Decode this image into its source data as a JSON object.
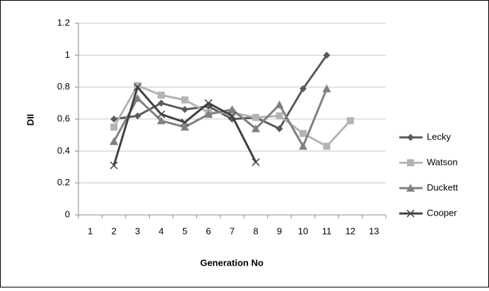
{
  "chart_data": {
    "type": "line",
    "x_label": "Generation No",
    "y_label": "DII",
    "categories": [
      "1",
      "2",
      "3",
      "4",
      "5",
      "6",
      "7",
      "8",
      "9",
      "10",
      "11",
      "12",
      "13"
    ],
    "series": [
      {
        "name": "Lecky",
        "color": "#5a5a5a",
        "marker": "diamond",
        "values": [
          null,
          0.6,
          0.62,
          0.7,
          0.66,
          0.68,
          0.6,
          0.61,
          0.54,
          0.79,
          1.0,
          null,
          null
        ]
      },
      {
        "name": "Watson",
        "color": "#b4b4b4",
        "marker": "square",
        "values": [
          null,
          0.55,
          0.81,
          0.75,
          0.72,
          0.64,
          0.64,
          0.61,
          0.62,
          0.51,
          0.43,
          0.59,
          null
        ]
      },
      {
        "name": "Duckett",
        "color": "#808080",
        "marker": "triangle",
        "values": [
          null,
          0.46,
          0.73,
          0.59,
          0.55,
          0.63,
          0.66,
          0.54,
          0.69,
          0.43,
          0.79,
          null,
          null
        ]
      },
      {
        "name": "Cooper",
        "color": "#404040",
        "marker": "x",
        "values": [
          null,
          0.31,
          0.8,
          0.63,
          0.58,
          0.7,
          0.62,
          0.33,
          null,
          null,
          null,
          null,
          null
        ]
      }
    ],
    "ylim": [
      0,
      1.2
    ],
    "yticks": [
      0,
      0.2,
      0.4,
      0.6,
      0.8,
      1,
      1.2
    ],
    "grid": true,
    "legend": "right"
  }
}
